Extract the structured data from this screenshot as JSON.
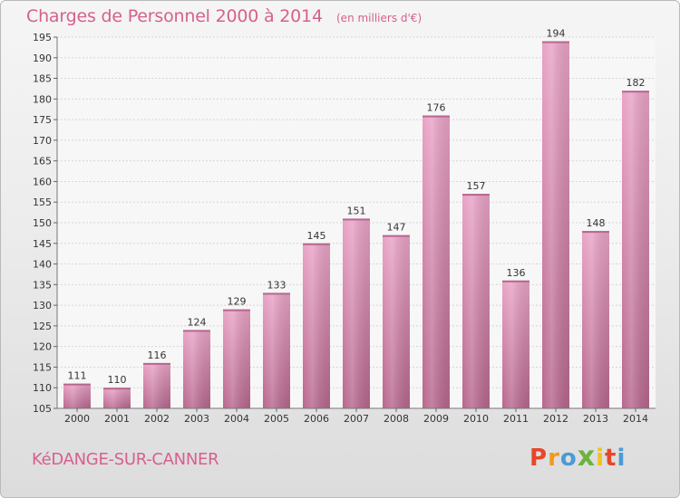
{
  "header": {
    "title": "Charges de Personnel 2000 à 2014",
    "unit_note": "(en milliers d'€)"
  },
  "footer": {
    "commune": "KéDANGE-SUR-CANNER",
    "brand_letters": [
      "P",
      "r",
      "o",
      "x",
      "i",
      "t",
      "i"
    ],
    "brand_colors": [
      "#e8462a",
      "#f29a1e",
      "#4a9bd6",
      "#6cb33f",
      "#f2c21a",
      "#e8462a",
      "#4a9bd6"
    ]
  },
  "chart_data": {
    "type": "bar",
    "categories": [
      "2000",
      "2001",
      "2002",
      "2003",
      "2004",
      "2005",
      "2006",
      "2007",
      "2008",
      "2009",
      "2010",
      "2011",
      "2012",
      "2013",
      "2014"
    ],
    "values": [
      111,
      110,
      116,
      124,
      129,
      133,
      145,
      151,
      147,
      176,
      157,
      136,
      194,
      148,
      182
    ],
    "ylim": [
      105,
      195
    ],
    "yticks": [
      105,
      110,
      115,
      120,
      125,
      130,
      135,
      140,
      145,
      150,
      155,
      160,
      165,
      170,
      175,
      180,
      185,
      190,
      195
    ],
    "grid": true,
    "bar_color": "#d77ea9",
    "bar_color_light": "#e9a3c6",
    "bar_color_dark": "#b7678d"
  }
}
